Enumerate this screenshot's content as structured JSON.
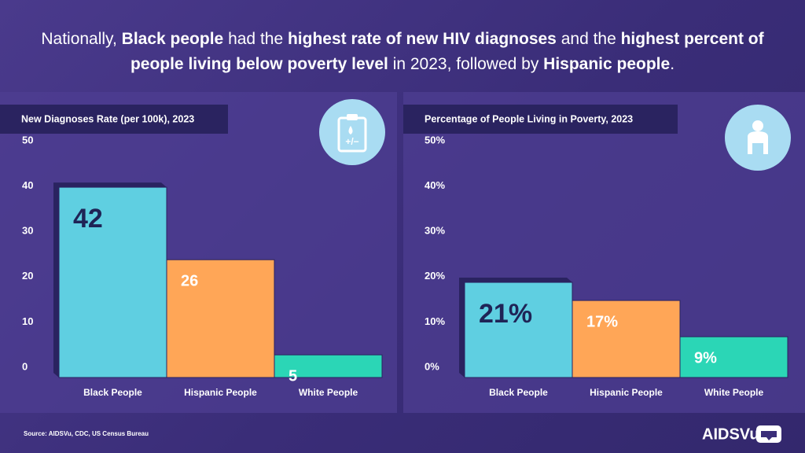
{
  "headline": [
    {
      "text": "Nationally, ",
      "bold": false
    },
    {
      "text": "Black people",
      "bold": true
    },
    {
      "text": " had the ",
      "bold": false
    },
    {
      "text": "highest rate of new HIV diagnoses",
      "bold": true
    },
    {
      "text": " and the ",
      "bold": false
    },
    {
      "text": "highest percent of people living below poverty level",
      "bold": true
    },
    {
      "text": " in 2023, followed by ",
      "bold": false
    },
    {
      "text": "Hispanic people",
      "bold": true
    },
    {
      "text": ".",
      "bold": false
    }
  ],
  "chart_data": [
    {
      "type": "bar",
      "title": "New Diagnoses Rate (per 100k), 2023",
      "categories": [
        "Black People",
        "Hispanic People",
        "White People"
      ],
      "values": [
        42,
        26,
        5
      ],
      "colors": [
        "#5fcfe1",
        "#ffa657",
        "#2bd6b6"
      ],
      "ylim": [
        0,
        50
      ],
      "yticks": [
        0,
        10,
        20,
        30,
        40,
        50
      ]
    },
    {
      "type": "bar",
      "title": "Percentage of People Living in Poverty, 2023",
      "categories": [
        "Black People",
        "Hispanic People",
        "White People"
      ],
      "values": [
        21,
        17,
        9
      ],
      "value_labels": [
        "21%",
        "17%",
        "9%"
      ],
      "colors": [
        "#5fcfe1",
        "#ffa657",
        "#2bd6b6"
      ],
      "ylim": [
        0,
        50
      ],
      "yticks": [
        {
          "value": 0,
          "label": "0%"
        },
        {
          "value": 10,
          "label": "10%"
        },
        {
          "value": 20,
          "label": "20%"
        },
        {
          "value": 30,
          "label": "30%"
        },
        {
          "value": 40,
          "label": "40%"
        },
        {
          "value": 50,
          "label": "50%"
        }
      ]
    }
  ],
  "source": "Source: AIDSVu, CDC, US Census Bureau",
  "logo": "AIDSVu"
}
